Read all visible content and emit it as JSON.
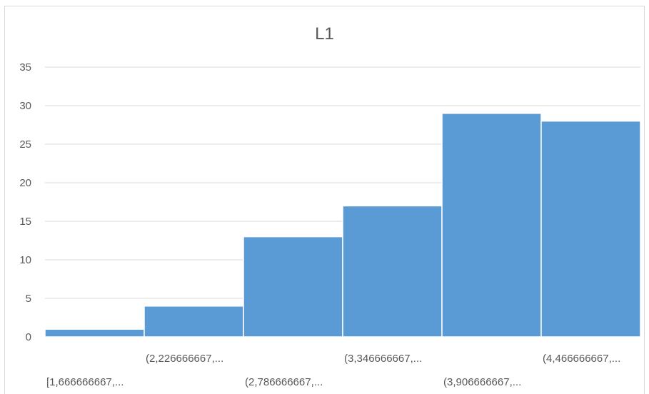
{
  "chart_data": {
    "type": "bar",
    "title": "L1",
    "xlabel": "",
    "ylabel": "",
    "categories": [
      "[1,666666667,...",
      "(2,226666667,...",
      "(2,786666667,...",
      "(3,346666667,...",
      "(3,906666667,...",
      "(4,466666667,..."
    ],
    "values": [
      1,
      4,
      13,
      17,
      29,
      28
    ],
    "ylim": [
      0,
      35
    ],
    "yticks": [
      "0",
      "5",
      "10",
      "15",
      "20",
      "25",
      "30",
      "35"
    ],
    "grid": true,
    "legend": "none",
    "bar_color": "#5b9bd5",
    "grid_color": "#d9d9d9"
  }
}
